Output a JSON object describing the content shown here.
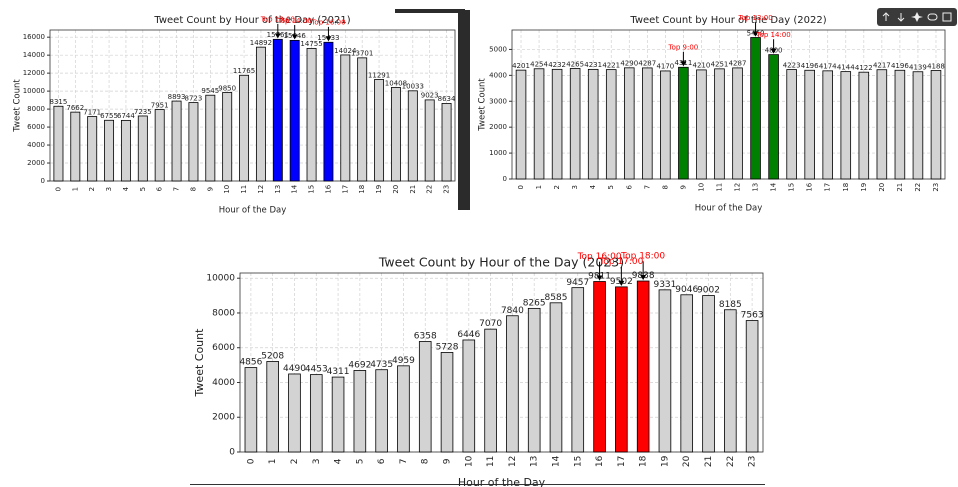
{
  "chart_data": [
    {
      "type": "bar",
      "title": "Tweet Count by Hour of the Day (2021)",
      "x_label": "Hour of the Day",
      "y_label": "Tweet Count",
      "categories": [
        "0",
        "1",
        "2",
        "3",
        "4",
        "5",
        "6",
        "7",
        "8",
        "9",
        "10",
        "11",
        "12",
        "13",
        "14",
        "15",
        "16",
        "17",
        "18",
        "19",
        "20",
        "21",
        "22",
        "23"
      ],
      "values": [
        8315,
        7662,
        7171,
        6755,
        6744,
        7235,
        7951,
        8893,
        8723,
        9545,
        9850,
        11765,
        14892,
        15761,
        15646,
        14755,
        15433,
        14024,
        13701,
        11291,
        10408,
        10033,
        9023,
        8634
      ],
      "colors": [
        "#d3d3d3",
        "#d3d3d3",
        "#d3d3d3",
        "#d3d3d3",
        "#d3d3d3",
        "#d3d3d3",
        "#d3d3d3",
        "#d3d3d3",
        "#d3d3d3",
        "#d3d3d3",
        "#d3d3d3",
        "#d3d3d3",
        "#d3d3d3",
        "#0000ff",
        "#0000ff",
        "#d3d3d3",
        "#0000ff",
        "#d3d3d3",
        "#d3d3d3",
        "#d3d3d3",
        "#d3d3d3",
        "#d3d3d3",
        "#d3d3d3",
        "#d3d3d3"
      ],
      "annotations": [
        "Top 13:00",
        "Top 14:00",
        "Top 16:00"
      ],
      "ylim": [
        0,
        16800
      ],
      "yticks": [
        0,
        2000,
        4000,
        6000,
        8000,
        10000,
        12000,
        14000,
        16000
      ],
      "grid": true
    },
    {
      "type": "bar",
      "title": "Tweet Count by Hour of the Day (2022)",
      "x_label": "Hour of the Day",
      "y_label": "Tweet Count",
      "categories": [
        "0",
        "1",
        "2",
        "3",
        "4",
        "5",
        "6",
        "7",
        "8",
        "9",
        "10",
        "11",
        "12",
        "13",
        "14",
        "15",
        "16",
        "17",
        "18",
        "19",
        "20",
        "21",
        "22",
        "23"
      ],
      "values": [
        4201,
        4254,
        4232,
        4265,
        4231,
        4221,
        4290,
        4287,
        4170,
        4311,
        4210,
        4251,
        4287,
        5460,
        4800,
        4223,
        4196,
        4174,
        4144,
        4122,
        4217,
        4196,
        4139,
        4188
      ],
      "colors": [
        "#d3d3d3",
        "#d3d3d3",
        "#d3d3d3",
        "#d3d3d3",
        "#d3d3d3",
        "#d3d3d3",
        "#d3d3d3",
        "#d3d3d3",
        "#d3d3d3",
        "#008000",
        "#d3d3d3",
        "#d3d3d3",
        "#d3d3d3",
        "#008000",
        "#008000",
        "#d3d3d3",
        "#d3d3d3",
        "#d3d3d3",
        "#d3d3d3",
        "#d3d3d3",
        "#d3d3d3",
        "#d3d3d3",
        "#d3d3d3",
        "#d3d3d3"
      ],
      "annotations": [
        "Top 9:00",
        "Top 13:00",
        "Top 14:00"
      ],
      "ylim": [
        0,
        5750
      ],
      "yticks": [
        0,
        1000,
        2000,
        3000,
        4000,
        5000
      ],
      "grid": true
    },
    {
      "type": "bar",
      "title": "Tweet Count by Hour of the Day (2023)",
      "x_label": "Hour of the Day",
      "y_label": "Tweet Count",
      "categories": [
        "0",
        "1",
        "2",
        "3",
        "4",
        "5",
        "6",
        "7",
        "8",
        "9",
        "10",
        "11",
        "12",
        "13",
        "14",
        "15",
        "16",
        "17",
        "18",
        "19",
        "20",
        "21",
        "22",
        "23"
      ],
      "values": [
        4856,
        5208,
        4490,
        4453,
        4311,
        4692,
        4735,
        4959,
        6358,
        5728,
        6446,
        7070,
        7840,
        8265,
        8585,
        9457,
        9811,
        9502,
        9838,
        9331,
        9046,
        9002,
        8185,
        7563
      ],
      "colors": [
        "#d3d3d3",
        "#d3d3d3",
        "#d3d3d3",
        "#d3d3d3",
        "#d3d3d3",
        "#d3d3d3",
        "#d3d3d3",
        "#d3d3d3",
        "#d3d3d3",
        "#d3d3d3",
        "#d3d3d3",
        "#d3d3d3",
        "#d3d3d3",
        "#d3d3d3",
        "#d3d3d3",
        "#d3d3d3",
        "#ff0000",
        "#ff0000",
        "#ff0000",
        "#d3d3d3",
        "#d3d3d3",
        "#d3d3d3",
        "#d3d3d3",
        "#d3d3d3"
      ],
      "annotations": [
        "Top 16:00",
        "Top 17:00",
        "Top 18:00"
      ],
      "ylim": [
        0,
        10300
      ],
      "yticks": [
        0,
        2000,
        4000,
        6000,
        8000,
        10000
      ],
      "grid": true
    }
  ]
}
